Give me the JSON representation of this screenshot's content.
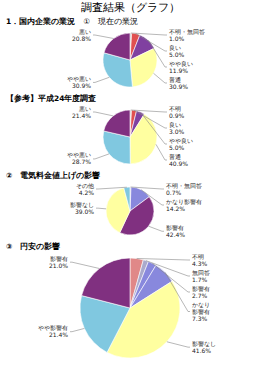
{
  "title": "調査結果（グラフ）",
  "chart_data": [
    {
      "type": "pie",
      "title": "1．国内企業の業況",
      "subtitle": "①　現在の業況",
      "categories": [
        "不明・無回答",
        "良い",
        "やや良い",
        "普通",
        "やや悪い",
        "悪い"
      ],
      "values": [
        1.0,
        5.0,
        11.9,
        30.9,
        30.9,
        20.8
      ],
      "value_labels": [
        "1.0%",
        "5.0%",
        "11.9%",
        "30.9%",
        "30.9%",
        "20.8%"
      ],
      "colors": [
        "#bbbbbb",
        "#e05050",
        "#8040a0",
        "#ffffa0",
        "#80c8e0",
        "#803080"
      ],
      "data_labels": true
    },
    {
      "type": "pie",
      "title": "【参考】平成24年度調査",
      "categories": [
        "不明",
        "良い",
        "やや良い",
        "普通",
        "やや悪い",
        "悪い"
      ],
      "values": [
        0.9,
        3.0,
        5.0,
        40.9,
        28.7,
        21.4
      ],
      "value_labels": [
        "0.9%",
        "3.0%",
        "5.0%",
        "40.9%",
        "28.7%",
        "21.4%"
      ],
      "colors": [
        "#bbbbbb",
        "#e05050",
        "#8040a0",
        "#ffffa0",
        "#80c8e0",
        "#803080"
      ],
      "data_labels": true
    },
    {
      "type": "pie",
      "title": "②　電気料金値上げの影響",
      "categories": [
        "不明・無回答",
        "かなり影響有",
        "影響有",
        "影響なし",
        "その他"
      ],
      "values": [
        0.7,
        14.2,
        42.4,
        39.0,
        4.2
      ],
      "value_labels": [
        "0.7%",
        "14.2%",
        "42.4%",
        "39.0%",
        "4.2%"
      ],
      "colors": [
        "#aaaacc",
        "#8888dd",
        "#803080",
        "#ffffa0",
        "#80c8e0"
      ],
      "data_labels": true
    },
    {
      "type": "pie",
      "title": "③　円安の影響",
      "categories": [
        "不明",
        "無回答",
        "影響有",
        "かなり\n影響有",
        "影響なし",
        "やや影響有",
        "影響有"
      ],
      "values": [
        4.3,
        1.7,
        2.7,
        7.3,
        41.6,
        21.4,
        21.0
      ],
      "value_labels": [
        "4.3%",
        "1.7%",
        "2.7%",
        "7.3%",
        "41.6%",
        "21.4%",
        "21.0%"
      ],
      "colors": [
        "#e08888",
        "#aaaacc",
        "#8888dd",
        "#8888dd",
        "#ffffa0",
        "#80c8e0",
        "#803080"
      ],
      "data_labels": true
    }
  ]
}
